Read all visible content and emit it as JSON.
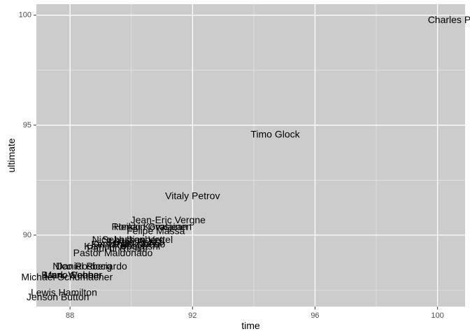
{
  "chart_data": {
    "type": "scatter",
    "mark": "text",
    "xlabel": "time",
    "ylabel": "ultimate",
    "xlim": [
      86.9,
      100.9
    ],
    "ylim": [
      86.75,
      100.5
    ],
    "xticks": [
      88,
      92,
      96,
      100
    ],
    "yticks": [
      90,
      95,
      100
    ],
    "x_minor": [
      90,
      94,
      98
    ],
    "y_minor": [
      87.5,
      92.5,
      97.5
    ],
    "grid": true,
    "background": "#cccccc",
    "points": [
      {
        "label": "Charles Pic",
        "x": 100.5,
        "y": 99.8
      },
      {
        "label": "Timo Glock",
        "x": 94.7,
        "y": 94.6
      },
      {
        "label": "Vitaly Petrov",
        "x": 92.0,
        "y": 91.8
      },
      {
        "label": "Jean-Eric Vergne",
        "x": 91.2,
        "y": 90.7
      },
      {
        "label": "Romain Grosjean",
        "x": 90.6,
        "y": 90.4
      },
      {
        "label": "Heikki Kovalainen",
        "x": 90.7,
        "y": 90.4
      },
      {
        "label": "Felipe Massa",
        "x": 90.8,
        "y": 90.2
      },
      {
        "label": "Nico Hulkenberg",
        "x": 89.9,
        "y": 89.8
      },
      {
        "label": "Sebastian Vettel",
        "x": 90.2,
        "y": 89.8
      },
      {
        "label": "Sergio Perez",
        "x": 90.1,
        "y": 89.7
      },
      {
        "label": "Kimi Raikkonen",
        "x": 89.8,
        "y": 89.6
      },
      {
        "label": "Kamui Kobayashi",
        "x": 89.7,
        "y": 89.5
      },
      {
        "label": "Fernando Alonso",
        "x": 89.9,
        "y": 89.6
      },
      {
        "label": "Paul di Resta",
        "x": 89.5,
        "y": 89.4
      },
      {
        "label": "Pastor Maldonado",
        "x": 89.4,
        "y": 89.2
      },
      {
        "label": "Daniel Ricciardo",
        "x": 88.7,
        "y": 88.6
      },
      {
        "label": "Nico Rosberg",
        "x": 88.4,
        "y": 88.6
      },
      {
        "label": "Bruno Senna",
        "x": 88.0,
        "y": 88.2
      },
      {
        "label": "Mark Webber",
        "x": 88.1,
        "y": 88.2
      },
      {
        "label": "Michael Schumacher",
        "x": 87.9,
        "y": 88.1
      },
      {
        "label": "Lewis Hamilton",
        "x": 87.8,
        "y": 87.4
      },
      {
        "label": "Jenson Button",
        "x": 87.6,
        "y": 87.2
      }
    ]
  }
}
